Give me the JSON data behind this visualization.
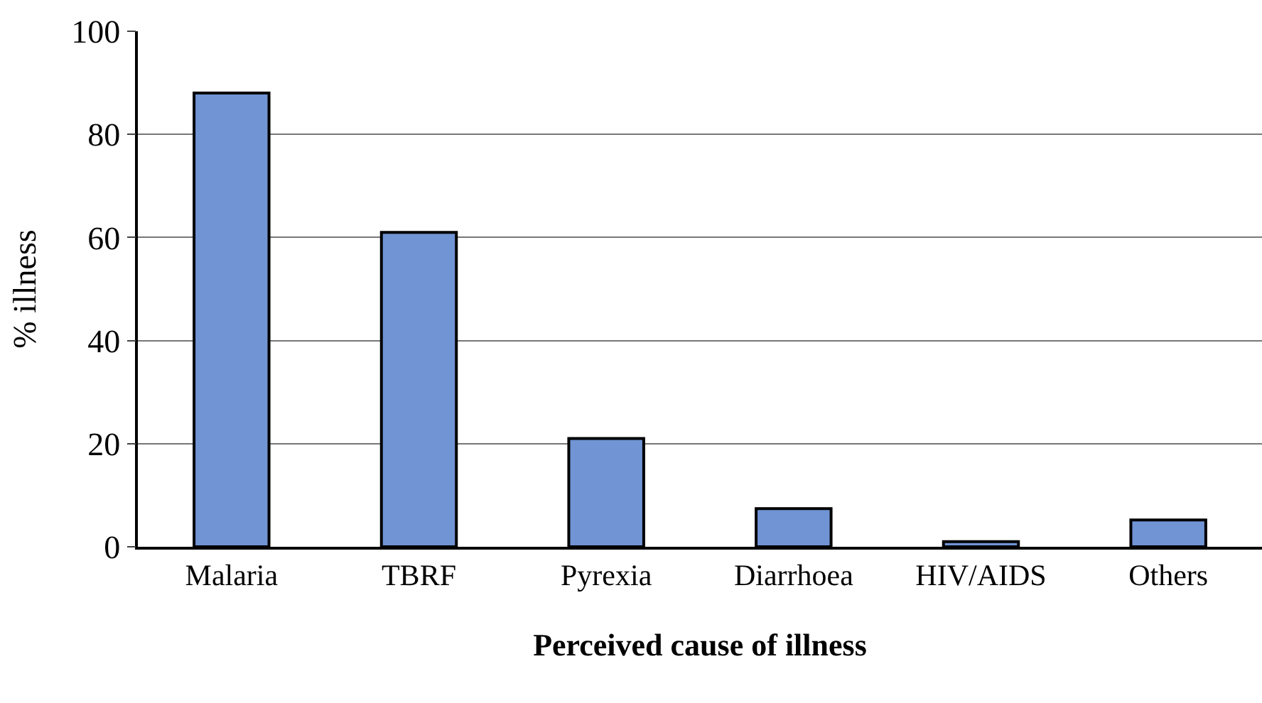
{
  "chart_data": {
    "type": "bar",
    "xlabel": "Perceived cause of illness",
    "ylabel": "% illness",
    "categories": [
      "Malaria",
      "TBRF",
      "Pyrexia",
      "Diarrhoea",
      "HIV/AIDS",
      "Others"
    ],
    "values": [
      88,
      61,
      21,
      7.4,
      1,
      5.2
    ],
    "color": "#7094d4",
    "ylim": [
      0,
      100
    ],
    "yticks": [
      0,
      20,
      40,
      60,
      80,
      100
    ],
    "grid": "y"
  }
}
